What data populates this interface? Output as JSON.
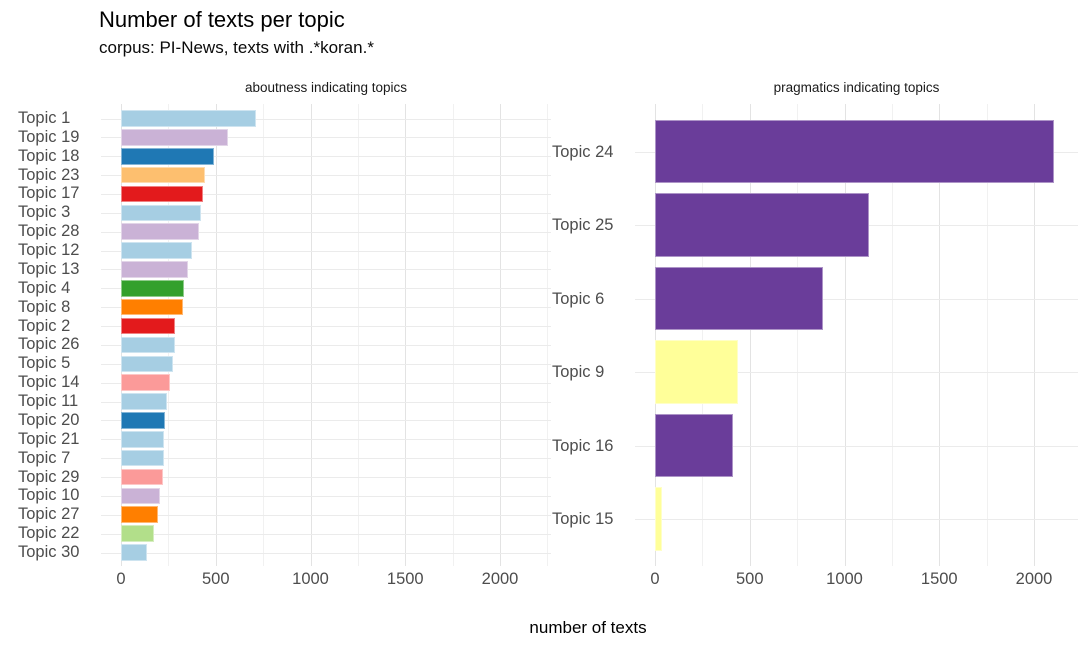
{
  "header": {
    "title": "Number of texts per topic",
    "subtitle": "corpus: PI-News, texts with .*koran.*"
  },
  "axis": {
    "x_title": "number of texts",
    "x_ticks": [
      0,
      500,
      1000,
      1500,
      2000
    ],
    "x_minor_ticks": [
      250,
      750,
      1250,
      1750,
      2250
    ],
    "xlim": [
      0,
      2270
    ],
    "grid": true
  },
  "chart_data": [
    {
      "type": "bar",
      "orientation": "horizontal",
      "panel_title": "aboutness indicating topics",
      "legend": "none",
      "categories": [
        "Topic 1",
        "Topic 19",
        "Topic 18",
        "Topic 23",
        "Topic 17",
        "Topic 3",
        "Topic 28",
        "Topic 12",
        "Topic 13",
        "Topic 4",
        "Topic 8",
        "Topic 2",
        "Topic 26",
        "Topic 5",
        "Topic 14",
        "Topic 11",
        "Topic 20",
        "Topic 21",
        "Topic 7",
        "Topic 29",
        "Topic 10",
        "Topic 27",
        "Topic 22",
        "Topic 30"
      ],
      "values": [
        715,
        563,
        493,
        442,
        431,
        423,
        412,
        377,
        352,
        331,
        329,
        286,
        284,
        274,
        261,
        241,
        232,
        229,
        226,
        219,
        205,
        197,
        174,
        136
      ],
      "colors": [
        "#a6cee3",
        "#cab2d6",
        "#1f78b4",
        "#fdbf6f",
        "#e31a1c",
        "#a6cee3",
        "#cab2d6",
        "#a6cee3",
        "#cab2d6",
        "#33a02c",
        "#ff7f00",
        "#e31a1c",
        "#a6cee3",
        "#a6cee3",
        "#fb9a99",
        "#a6cee3",
        "#1f78b4",
        "#a6cee3",
        "#a6cee3",
        "#fb9a99",
        "#cab2d6",
        "#ff7f00",
        "#b2df8a",
        "#a6cee3"
      ],
      "x_ticks": [
        0,
        500,
        1000,
        1500,
        2000
      ]
    },
    {
      "type": "bar",
      "orientation": "horizontal",
      "panel_title": "pragmatics indicating topics",
      "legend": "none",
      "categories": [
        "Topic 24",
        "Topic 25",
        "Topic 6",
        "Topic 9",
        "Topic 16",
        "Topic 15"
      ],
      "values": [
        2105,
        1131,
        888,
        436,
        410,
        37
      ],
      "colors": [
        "#6a3d9a",
        "#6a3d9a",
        "#6a3d9a",
        "#ffff99",
        "#6a3d9a",
        "#ffff99"
      ],
      "x_ticks": [
        0,
        500,
        1000,
        1500,
        2000
      ]
    }
  ]
}
